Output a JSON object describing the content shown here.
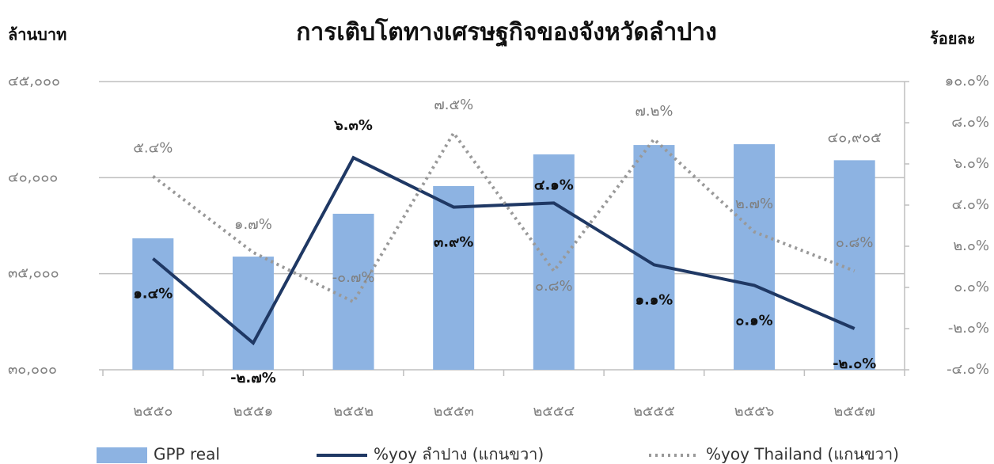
{
  "chart_data": {
    "type": "bar_line_dual",
    "title": "การเติบโตทางเศรษฐกิจของจังหวัดลำปาง",
    "y_label": "ล้านบาท",
    "y2_label": "ร้อยละ",
    "categories": [
      "๒๕๕๐",
      "๒๕๕๑",
      "๒๕๕๒",
      "๒๕๕๓",
      "๒๕๕๔",
      "๒๕๕๕",
      "๒๕๕๖",
      "๒๕๕๗"
    ],
    "series": [
      {
        "name": "GPP real",
        "kind": "bar",
        "color": "#8db3e2",
        "values": [
          36840,
          35890,
          38120,
          39560,
          41210,
          41700,
          41740,
          40905
        ],
        "value_labels": [
          null,
          null,
          null,
          null,
          null,
          null,
          null,
          "๔๐,๙๐๕"
        ]
      },
      {
        "name": "%yoy ลำปาง (แกนขวา)",
        "kind": "line",
        "axis": "y2",
        "color": "#1f3864",
        "values": [
          1.4,
          -2.7,
          6.3,
          3.9,
          4.1,
          1.1,
          0.1,
          -2.0
        ],
        "value_labels": [
          "๑.๔%",
          "-๒.๗%",
          "๖.๓%",
          "๓.๙%",
          "๔.๑%",
          "๑.๑%",
          "๐.๑%",
          "-๒.๐%"
        ]
      },
      {
        "name": "%yoy Thailand (แกนขวา)",
        "kind": "dotted",
        "axis": "y2",
        "color": "#999999",
        "values": [
          5.4,
          1.7,
          -0.7,
          7.5,
          0.8,
          7.2,
          2.7,
          0.8
        ],
        "value_labels": [
          "๕.๔%",
          "๑.๗%",
          "-๐.๗%",
          "๗.๕%",
          "๐.๘%",
          "๗.๒%",
          "๒.๗%",
          "๐.๘%"
        ]
      }
    ],
    "ylim": [
      30000,
      45000
    ],
    "yticks": [
      {
        "value": 30000,
        "label": "๓๐,๐๐๐"
      },
      {
        "value": 35000,
        "label": "๓๕,๐๐๐"
      },
      {
        "value": 40000,
        "label": "๔๐,๐๐๐"
      },
      {
        "value": 45000,
        "label": "๔๕,๐๐๐"
      }
    ],
    "y2lim": [
      -4,
      10
    ],
    "y2ticks": [
      {
        "value": -4,
        "label": "-๔.๐%"
      },
      {
        "value": -2,
        "label": "-๒.๐%"
      },
      {
        "value": 0,
        "label": "๐.๐%"
      },
      {
        "value": 2,
        "label": "๒.๐%"
      },
      {
        "value": 4,
        "label": "๔.๐%"
      },
      {
        "value": 6,
        "label": "๖.๐%"
      },
      {
        "value": 8,
        "label": "๘.๐%"
      },
      {
        "value": 10,
        "label": "๑๐.๐%"
      }
    ],
    "grid": true
  }
}
